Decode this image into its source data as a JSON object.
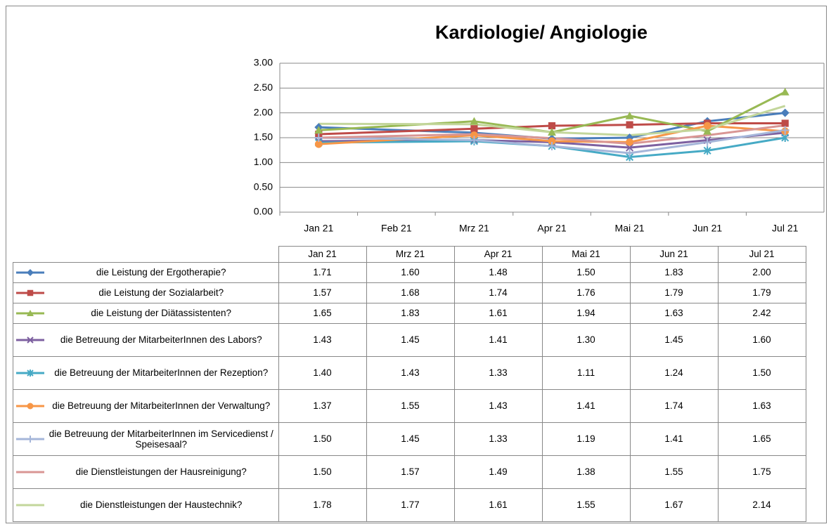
{
  "chart_data": {
    "type": "line",
    "title": "Kardiologie/ Angiologie",
    "categories": [
      "Jan 21",
      "Feb 21",
      "Mrz 21",
      "Apr 21",
      "Mai 21",
      "Jun 21",
      "Jul 21"
    ],
    "ylim": [
      0,
      3
    ],
    "yticks": [
      {
        "value": 0,
        "label": "0.00"
      },
      {
        "value": 0.5,
        "label": "0.50"
      },
      {
        "value": 1,
        "label": "1.00"
      },
      {
        "value": 1.5,
        "label": "1.50"
      },
      {
        "value": 2,
        "label": "2.00"
      },
      {
        "value": 2.5,
        "label": "2.50"
      },
      {
        "value": 3,
        "label": "3.00"
      }
    ],
    "grid": true,
    "series": [
      {
        "name": "die Leistung der Ergotherapie?",
        "color": "#4a7ebb",
        "marker": "diamond",
        "values": [
          1.71,
          null,
          1.6,
          1.48,
          1.5,
          1.83,
          2
        ],
        "value_labels": [
          "1.71",
          null,
          "1.60",
          "1.48",
          "1.50",
          "1.83",
          "2.00"
        ]
      },
      {
        "name": "die Leistung der Sozialarbeit?",
        "color": "#be4b48",
        "marker": "square",
        "values": [
          1.57,
          null,
          1.68,
          1.74,
          1.76,
          1.79,
          1.79
        ],
        "value_labels": [
          "1.57",
          null,
          "1.68",
          "1.74",
          "1.76",
          "1.79",
          "1.79"
        ]
      },
      {
        "name": "die Leistung der Diätassistenten?",
        "color": "#98b954",
        "marker": "triangle",
        "values": [
          1.65,
          null,
          1.83,
          1.61,
          1.94,
          1.63,
          2.42
        ],
        "value_labels": [
          "1.65",
          null,
          "1.83",
          "1.61",
          "1.94",
          "1.63",
          "2.42"
        ]
      },
      {
        "name": "die Betreuung der MitarbeiterInnen des Labors?",
        "color": "#7d60a0",
        "marker": "x",
        "values": [
          1.43,
          null,
          1.45,
          1.41,
          1.3,
          1.45,
          1.6
        ],
        "value_labels": [
          "1.43",
          null,
          "1.45",
          "1.41",
          "1.30",
          "1.45",
          "1.60"
        ]
      },
      {
        "name": "die Betreuung der MitarbeiterInnen der Rezeption?",
        "color": "#46aac5",
        "marker": "star",
        "values": [
          1.4,
          null,
          1.43,
          1.33,
          1.11,
          1.24,
          1.5
        ],
        "value_labels": [
          "1.40",
          null,
          "1.43",
          "1.33",
          "1.11",
          "1.24",
          "1.50"
        ]
      },
      {
        "name": "die Betreuung der MitarbeiterInnen der Verwaltung?",
        "color": "#f79646",
        "marker": "circle",
        "values": [
          1.37,
          null,
          1.55,
          1.43,
          1.41,
          1.74,
          1.63
        ],
        "value_labels": [
          "1.37",
          null,
          "1.55",
          "1.43",
          "1.41",
          "1.74",
          "1.63"
        ]
      },
      {
        "name": "die Betreuung der MitarbeiterInnen im Servicedienst / Speisesaal?",
        "color": "#a5b6d9",
        "marker": "plus",
        "values": [
          1.5,
          null,
          1.45,
          1.33,
          1.19,
          1.41,
          1.65
        ],
        "value_labels": [
          "1.50",
          null,
          "1.45",
          "1.33",
          "1.19",
          "1.41",
          "1.65"
        ]
      },
      {
        "name": "die Dienstleistungen der Hausreinigung?",
        "color": "#d99694",
        "marker": "none",
        "values": [
          1.5,
          null,
          1.57,
          1.49,
          1.38,
          1.55,
          1.75
        ],
        "value_labels": [
          "1.50",
          null,
          "1.57",
          "1.49",
          "1.38",
          "1.55",
          "1.75"
        ]
      },
      {
        "name": "die Dienstleistungen der Haustechnik?",
        "color": "#c3d69b",
        "marker": "none",
        "values": [
          1.78,
          null,
          1.77,
          1.61,
          1.55,
          1.67,
          2.14
        ],
        "value_labels": [
          "1.78",
          null,
          "1.77",
          "1.61",
          "1.55",
          "1.67",
          "2.14"
        ]
      }
    ]
  }
}
